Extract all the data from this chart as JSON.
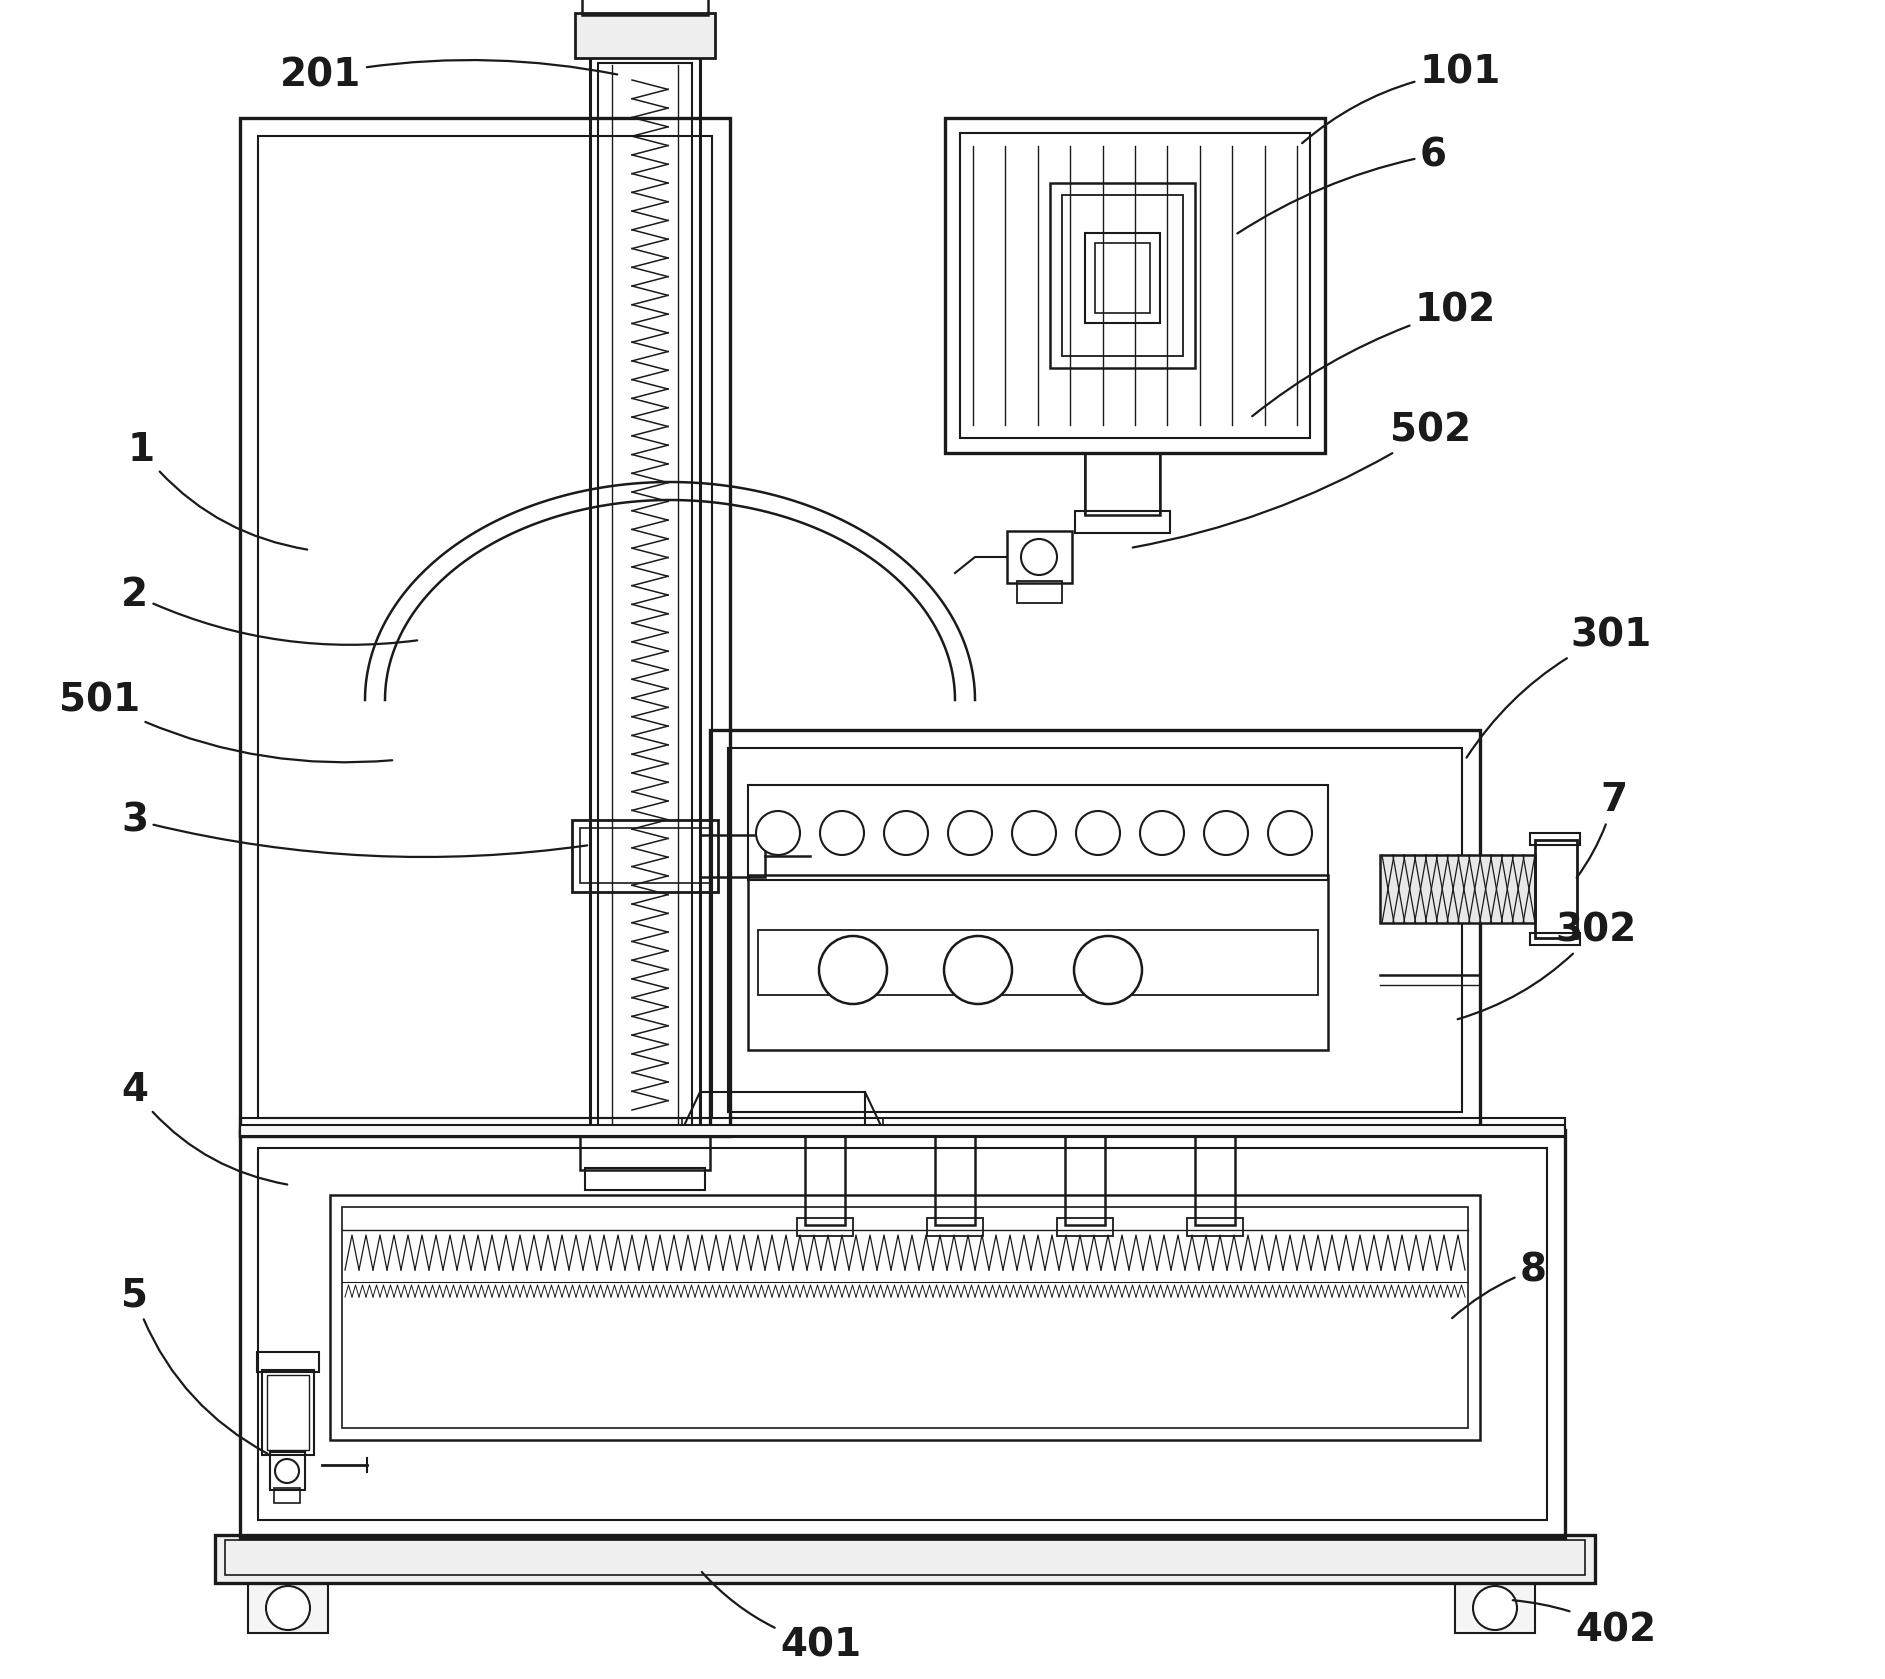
{
  "bg_color": "#ffffff",
  "lc": "#1a1a1a",
  "lw": 1.8,
  "tlw": 2.4
}
